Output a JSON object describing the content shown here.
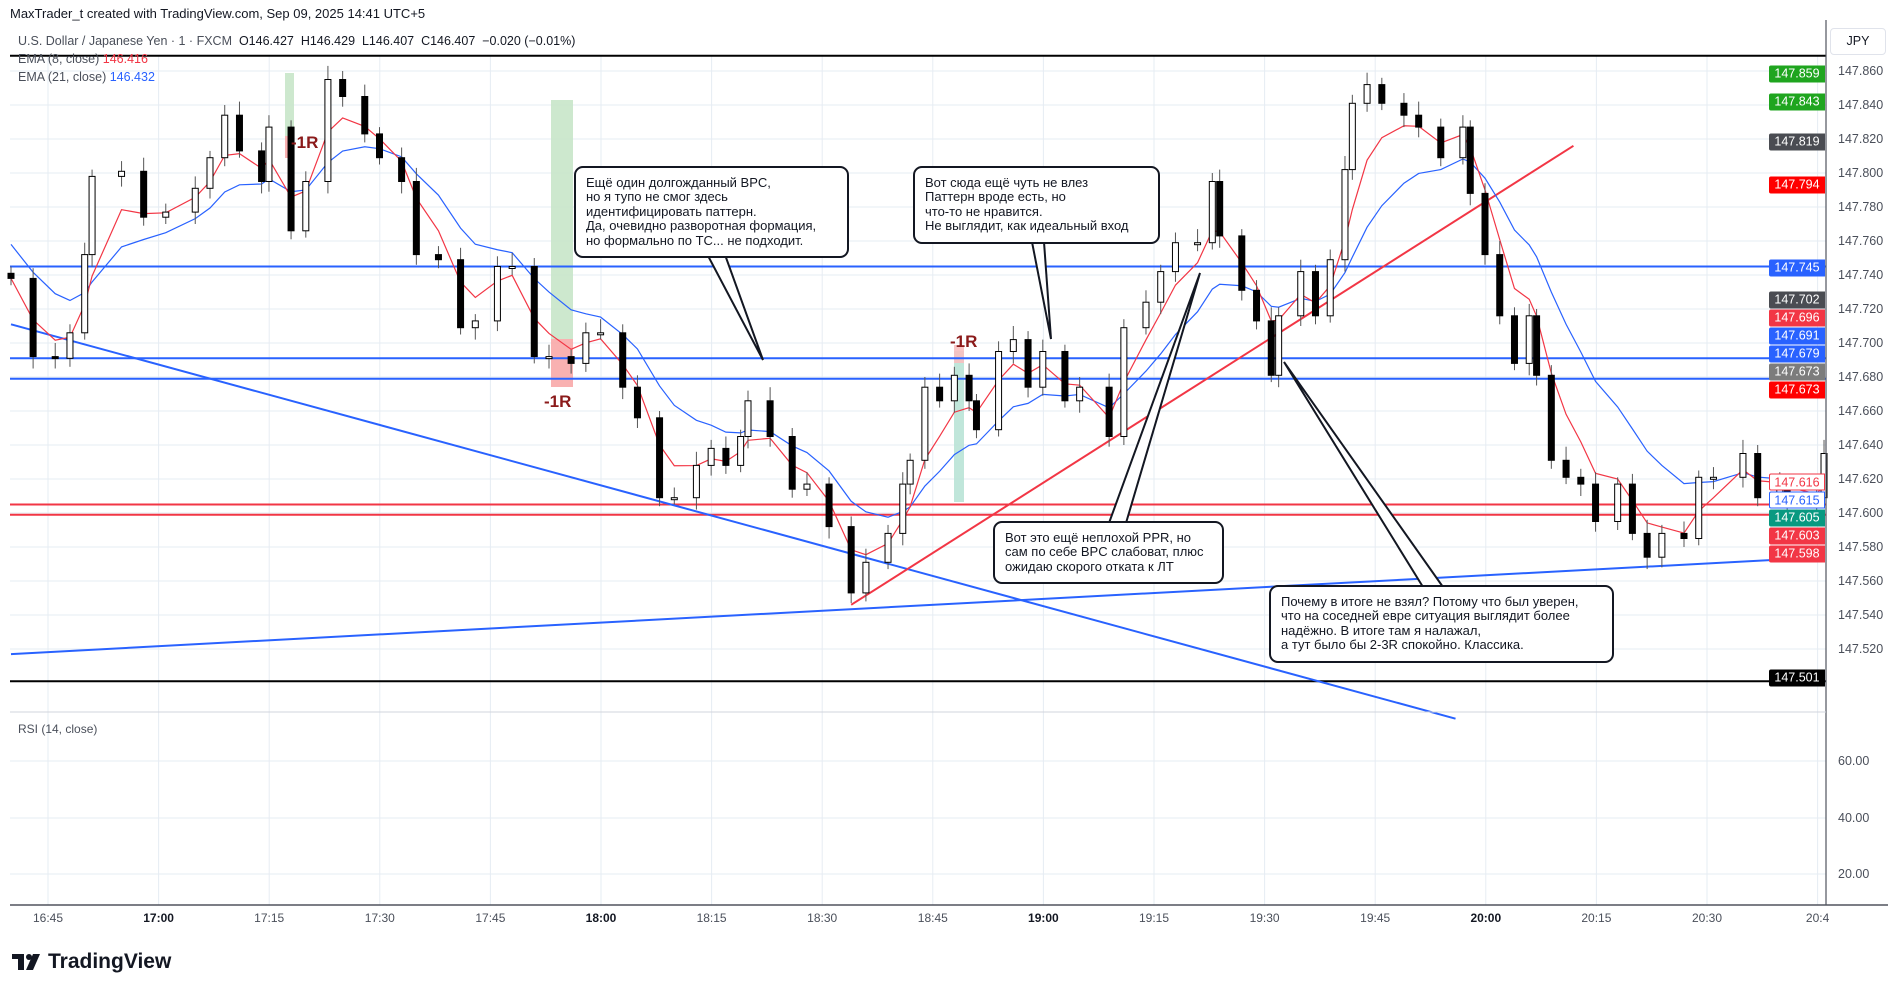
{
  "header": {
    "credit": "MaxTrader_t created with TradingView.com, Sep 09, 2025 14:41 UTC+5"
  },
  "legend": {
    "symbol": "U.S. Dollar / Japanese Yen · 1 · FXCM",
    "open": "O146.427",
    "high": "H146.429",
    "low": "L146.407",
    "close": "C146.407",
    "change": "−0.020 (−0.01%)",
    "ema8_label": "EMA (8, close)",
    "ema8_value": "146.416",
    "ema21_label": "EMA (21, close)",
    "ema21_value": "146.432",
    "rsi_label": "RSI (14, close)"
  },
  "currency": "JPY",
  "colors": {
    "up": "#ffffff",
    "down": "#000000",
    "ema8": "#f23645",
    "ema21": "#2962ff",
    "level_blue": "#2962ff",
    "level_red": "#f23645",
    "trend_red": "#f23645",
    "grid": "#e6ecf3"
  },
  "price_ticks": [
    "147.860",
    "147.840",
    "147.820",
    "147.800",
    "147.780",
    "147.760",
    "147.740",
    "147.720",
    "147.700",
    "147.680",
    "147.660",
    "147.640",
    "147.620",
    "147.600",
    "147.580",
    "147.560",
    "147.540",
    "147.520"
  ],
  "rsi_ticks": [
    "60.00",
    "40.00",
    "20.00"
  ],
  "price_badges": [
    {
      "label": "147.859",
      "bg": "#1fa51f",
      "fg": "#ffffff"
    },
    {
      "label": "147.843",
      "bg": "#1fa51f",
      "fg": "#ffffff"
    },
    {
      "label": "147.819",
      "bg": "#4a4c52",
      "fg": "#ffffff"
    },
    {
      "label": "147.794",
      "bg": "#ff0000",
      "fg": "#ffffff"
    },
    {
      "label": "147.745",
      "bg": "#2962ff",
      "fg": "#ffffff"
    },
    {
      "label": "147.702",
      "bg": "#4a4c52",
      "fg": "#ffffff"
    },
    {
      "label": "147.696",
      "bg": "#f23645",
      "fg": "#ffffff"
    },
    {
      "label": "147.691",
      "bg": "#2962ff",
      "fg": "#ffffff"
    },
    {
      "label": "147.679",
      "bg": "#2962ff",
      "fg": "#ffffff"
    },
    {
      "label": "147.673",
      "bg": "#7c7c7c",
      "fg": "#ffffff"
    },
    {
      "label": "147.673",
      "bg": "#ff0000",
      "fg": "#ffffff"
    },
    {
      "label": "147.616",
      "bg": "#ffffff",
      "fg": "#f23645",
      "border": "#f23645"
    },
    {
      "label": "147.615",
      "bg": "#ffffff",
      "fg": "#2962ff",
      "border": "#2962ff"
    },
    {
      "label": "147.605",
      "bg": "#089981",
      "fg": "#ffffff"
    },
    {
      "label": "147.603",
      "bg": "#f23645",
      "fg": "#ffffff"
    },
    {
      "label": "147.598",
      "bg": "#f23645",
      "fg": "#ffffff"
    },
    {
      "label": "147.501",
      "bg": "#000000",
      "fg": "#ffffff"
    }
  ],
  "time_labels": [
    {
      "label": "16:45",
      "bold": false
    },
    {
      "label": "17:00",
      "bold": true
    },
    {
      "label": "17:15",
      "bold": false
    },
    {
      "label": "17:30",
      "bold": false
    },
    {
      "label": "17:45",
      "bold": false
    },
    {
      "label": "18:00",
      "bold": true
    },
    {
      "label": "18:15",
      "bold": false
    },
    {
      "label": "18:30",
      "bold": false
    },
    {
      "label": "18:45",
      "bold": false
    },
    {
      "label": "19:00",
      "bold": true
    },
    {
      "label": "19:15",
      "bold": false
    },
    {
      "label": "19:30",
      "bold": false
    },
    {
      "label": "19:45",
      "bold": false
    },
    {
      "label": "20:00",
      "bold": true
    },
    {
      "label": "20:15",
      "bold": false
    },
    {
      "label": "20:30",
      "bold": false
    },
    {
      "label": "20:4",
      "bold": false
    }
  ],
  "risk_labels": [
    "-1R",
    "-1R",
    "-1R"
  ],
  "callouts": [
    {
      "text": "Ещё один долгожданный BPC,\nно я тупо не смог здесь\nидентифицировать паттерн.\nДа, очевидно разворотная формация,\nно формально по ТС... не подходит."
    },
    {
      "text": "Вот сюда ещё чуть не влез\nПаттерн вроде есть, но\nчто-то не нравится.\nНе выглядит, как идеальный вход"
    },
    {
      "text": "Вот это ещё неплохой PPR, но\nсам по себе BPC слабоват, плюс\nожидаю скорого отката к ЛТ"
    },
    {
      "text": "Почему в итоге не взял? Потому что был уверен,\nчто на соседней евре ситуация выглядит более\nнадёжно. В итоге там я налажал,\nа тут было бы 2-3R спокойно. Классика."
    }
  ],
  "brand": "TradingView",
  "chart_data": {
    "type": "candlestick",
    "title": "U.S. Dollar / Japanese Yen · 1 · FXCM",
    "x_unit": "minutes after 16:40",
    "ylim": [
      147.501,
      147.869
    ],
    "levels": {
      "blue": [
        147.745,
        147.691,
        147.679
      ],
      "red": [
        147.605,
        147.599
      ],
      "black": [
        147.869,
        147.501
      ]
    },
    "trendlines": [
      {
        "color": "blue",
        "from": [
          0,
          147.711
        ],
        "to": [
          196,
          147.479
        ]
      },
      {
        "color": "blue",
        "from": [
          0,
          147.517
        ],
        "to": [
          246,
          147.574
        ]
      },
      {
        "color": "red",
        "from": [
          114,
          147.546
        ],
        "to": [
          212,
          147.816
        ]
      }
    ],
    "closes": [
      [
        0,
        147.738
      ],
      [
        3,
        147.692
      ],
      [
        6,
        147.691
      ],
      [
        8,
        147.706
      ],
      [
        10,
        147.752
      ],
      [
        11,
        147.798
      ],
      [
        15,
        147.801
      ],
      [
        18,
        147.774
      ],
      [
        21,
        147.777
      ],
      [
        25,
        147.791
      ],
      [
        27,
        147.809
      ],
      [
        29,
        147.834
      ],
      [
        31,
        147.813
      ],
      [
        34,
        147.795
      ],
      [
        35,
        147.827
      ],
      [
        38,
        147.766
      ],
      [
        40,
        147.795
      ],
      [
        43,
        147.855
      ],
      [
        45,
        147.845
      ],
      [
        48,
        147.823
      ],
      [
        50,
        147.809
      ],
      [
        53,
        147.795
      ],
      [
        55,
        147.752
      ],
      [
        58,
        147.749
      ],
      [
        61,
        147.709
      ],
      [
        63,
        147.713
      ],
      [
        66,
        147.745
      ],
      [
        68,
        147.745
      ],
      [
        71,
        147.692
      ],
      [
        73,
        147.692
      ],
      [
        76,
        147.688
      ],
      [
        78,
        147.706
      ],
      [
        80,
        147.706
      ],
      [
        83,
        147.674
      ],
      [
        85,
        147.656
      ],
      [
        88,
        147.609
      ],
      [
        90,
        147.609
      ],
      [
        93,
        147.628
      ],
      [
        95,
        147.638
      ],
      [
        97,
        147.628
      ],
      [
        99,
        147.645
      ],
      [
        100,
        147.666
      ],
      [
        103,
        147.645
      ],
      [
        106,
        147.614
      ],
      [
        108,
        147.617
      ],
      [
        111,
        147.592
      ],
      [
        114,
        147.553
      ],
      [
        116,
        147.571
      ],
      [
        119,
        147.588
      ],
      [
        121,
        147.617
      ],
      [
        122,
        147.631
      ],
      [
        124,
        147.674
      ],
      [
        126,
        147.666
      ],
      [
        128,
        147.681
      ],
      [
        130,
        147.666
      ],
      [
        131,
        147.649
      ],
      [
        134,
        147.695
      ],
      [
        136,
        147.702
      ],
      [
        138,
        147.674
      ],
      [
        140,
        147.695
      ],
      [
        143,
        147.666
      ],
      [
        145,
        147.674
      ],
      [
        149,
        147.645
      ],
      [
        151,
        147.709
      ],
      [
        154,
        147.724
      ],
      [
        156,
        147.742
      ],
      [
        158,
        147.759
      ],
      [
        161,
        147.759
      ],
      [
        163,
        147.795
      ],
      [
        164,
        147.763
      ],
      [
        167,
        147.731
      ],
      [
        169,
        147.713
      ],
      [
        171,
        147.681
      ],
      [
        172,
        147.716
      ],
      [
        175,
        147.742
      ],
      [
        177,
        147.716
      ],
      [
        179,
        147.749
      ],
      [
        181,
        147.802
      ],
      [
        182,
        147.841
      ],
      [
        184,
        147.852
      ],
      [
        186,
        147.841
      ],
      [
        189,
        147.834
      ],
      [
        191,
        147.827
      ],
      [
        194,
        147.809
      ],
      [
        197,
        147.827
      ],
      [
        198,
        147.788
      ],
      [
        200,
        147.752
      ],
      [
        202,
        147.716
      ],
      [
        204,
        147.688
      ],
      [
        206,
        147.716
      ],
      [
        207,
        147.681
      ],
      [
        209,
        147.631
      ],
      [
        211,
        147.621
      ],
      [
        213,
        147.617
      ],
      [
        215,
        147.595
      ],
      [
        218,
        147.617
      ],
      [
        220,
        147.588
      ],
      [
        222,
        147.574
      ],
      [
        224,
        147.588
      ],
      [
        227,
        147.585
      ],
      [
        229,
        147.621
      ],
      [
        231,
        147.621
      ],
      [
        235,
        147.635
      ],
      [
        237,
        147.609
      ],
      [
        240,
        147.617
      ],
      [
        241,
        147.606
      ],
      [
        245,
        147.609
      ],
      [
        246,
        147.635
      ]
    ]
  }
}
